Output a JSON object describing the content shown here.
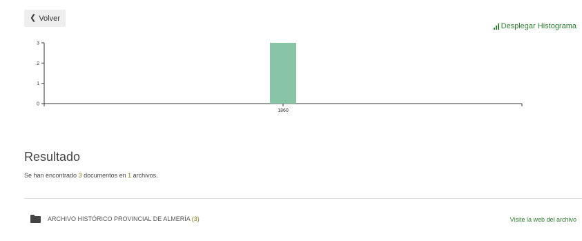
{
  "nav": {
    "back_label": "Volver"
  },
  "histogram_link": {
    "label": "Desplegar Histograma",
    "icon": "bar-chart-icon",
    "color": "#2e7d32"
  },
  "chart_data": {
    "type": "bar",
    "categories": [
      "1860"
    ],
    "values": [
      3
    ],
    "ylim": [
      0,
      3
    ],
    "yticks": [
      0,
      1,
      2,
      3
    ],
    "bar_color": "#88c4a6",
    "grid": false
  },
  "results": {
    "title": "Resultado",
    "prefix": "Se han encontrado ",
    "doc_count": "3",
    "middle": " documentos en ",
    "archive_count": "1",
    "suffix": " archivos."
  },
  "archives": [
    {
      "icon": "folder-icon",
      "name": "ARCHIVO HISTÓRICO PROVINCIAL DE ALMERÍA",
      "count_text": "(3)",
      "link_label": "Visite la web del archivo"
    }
  ],
  "colors": {
    "accent": "#2e7d32",
    "count_highlight": "#8a7a1a"
  }
}
